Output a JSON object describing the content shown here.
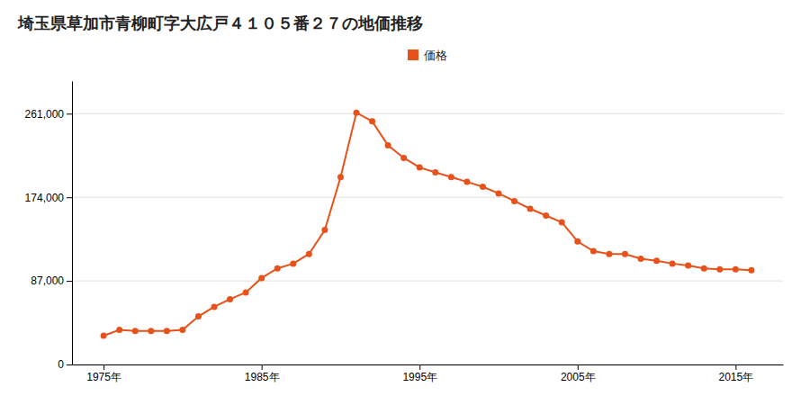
{
  "chart_data": {
    "type": "line",
    "title": "埼玉県草加市青柳町字大広戸４１０５番２７の地価推移",
    "x": [
      1975,
      1976,
      1977,
      1978,
      1979,
      1980,
      1981,
      1982,
      1983,
      1984,
      1985,
      1986,
      1987,
      1988,
      1989,
      1990,
      1991,
      1992,
      1993,
      1994,
      1995,
      1996,
      1997,
      1998,
      1999,
      2000,
      2001,
      2002,
      2003,
      2004,
      2005,
      2006,
      2007,
      2008,
      2009,
      2010,
      2011,
      2012,
      2013,
      2014,
      2015,
      2016
    ],
    "series": [
      {
        "name": "価格",
        "color": "#e8521a",
        "marker": "circle",
        "line_style": "solid",
        "values": [
          30000,
          36000,
          35000,
          35000,
          35000,
          36000,
          50000,
          60000,
          68000,
          75000,
          90000,
          100000,
          105000,
          115000,
          140000,
          195000,
          262000,
          253000,
          228000,
          215000,
          205000,
          200000,
          195000,
          190000,
          185000,
          178000,
          170000,
          162000,
          155000,
          148000,
          128000,
          118000,
          115000,
          115000,
          110000,
          108000,
          105000,
          103000,
          100000,
          99000,
          99000,
          98000
        ]
      }
    ],
    "xlim": [
      1973,
      2018
    ],
    "xticks": [
      {
        "value": 1975,
        "label": "1975年"
      },
      {
        "value": 1985,
        "label": "1985年"
      },
      {
        "value": 1995,
        "label": "1995年"
      },
      {
        "value": 2005,
        "label": "2005年"
      },
      {
        "value": 2015,
        "label": "2015年"
      }
    ],
    "ylim": [
      0,
      295000
    ],
    "yticks": [
      0,
      {
        "value": 87000,
        "label": "87,000"
      },
      {
        "value": 174000,
        "label": "174,000"
      },
      {
        "value": 261000,
        "label": "261,000"
      }
    ],
    "grid": "y",
    "legend": "top"
  }
}
